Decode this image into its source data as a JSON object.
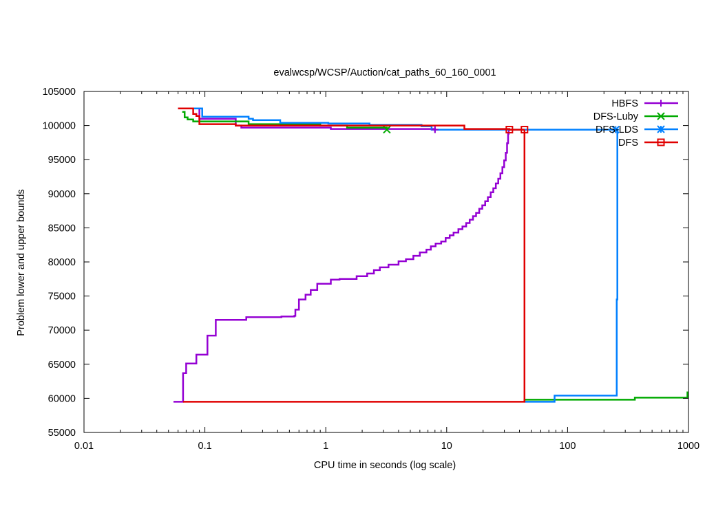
{
  "chart_data": {
    "type": "line",
    "title": "evalwcsp/WCSP/Auction/cat_paths_60_160_0001",
    "xlabel": "CPU time in seconds (log scale)",
    "ylabel": "Problem lower and upper bounds",
    "x_scale": "log",
    "xlim": [
      0.01,
      1000
    ],
    "ylim": [
      55000,
      105000
    ],
    "x_ticks": [
      0.01,
      0.1,
      1,
      10,
      100,
      1000
    ],
    "x_tick_labels": [
      "0.01",
      "0.1",
      "1",
      "10",
      "100",
      "1000"
    ],
    "y_ticks": [
      55000,
      60000,
      65000,
      70000,
      75000,
      80000,
      85000,
      90000,
      95000,
      100000,
      105000
    ],
    "y_tick_labels": [
      "55000",
      "60000",
      "65000",
      "70000",
      "75000",
      "80000",
      "85000",
      "90000",
      "95000",
      "100000",
      "105000"
    ],
    "grid": false,
    "legend_position": "top-right",
    "series": [
      {
        "name": "HBFS",
        "color": "#9400d3",
        "marker": "plus",
        "upper_bound": [
          [
            0.06,
            102500
          ],
          [
            0.075,
            102500
          ],
          [
            0.09,
            101000
          ],
          [
            0.18,
            100000
          ],
          [
            0.2,
            99700
          ],
          [
            1.1,
            99500
          ],
          [
            8.0,
            99400
          ]
        ],
        "lower_bound": [
          [
            0.055,
            59500
          ],
          [
            0.066,
            59500
          ],
          [
            0.066,
            63700
          ],
          [
            0.07,
            65100
          ],
          [
            0.085,
            66400
          ],
          [
            0.105,
            69200
          ],
          [
            0.123,
            71500
          ],
          [
            0.22,
            71900
          ],
          [
            0.43,
            72000
          ],
          [
            0.55,
            72100
          ],
          [
            0.56,
            73000
          ],
          [
            0.6,
            74500
          ],
          [
            0.68,
            75200
          ],
          [
            0.75,
            75900
          ],
          [
            0.85,
            76800
          ],
          [
            1.1,
            77400
          ],
          [
            1.3,
            77500
          ],
          [
            1.8,
            77900
          ],
          [
            2.2,
            78300
          ],
          [
            2.5,
            78800
          ],
          [
            2.8,
            79200
          ],
          [
            3.3,
            79600
          ],
          [
            4.0,
            80100
          ],
          [
            4.6,
            80400
          ],
          [
            5.3,
            80900
          ],
          [
            6.0,
            81400
          ],
          [
            6.8,
            81800
          ],
          [
            7.4,
            82300
          ],
          [
            8.1,
            82700
          ],
          [
            9.0,
            83000
          ],
          [
            9.8,
            83500
          ],
          [
            10.6,
            83900
          ],
          [
            11.4,
            84300
          ],
          [
            12.5,
            84800
          ],
          [
            13.5,
            85200
          ],
          [
            14.5,
            85700
          ],
          [
            15.5,
            86200
          ],
          [
            16.5,
            86700
          ],
          [
            17.5,
            87200
          ],
          [
            18.6,
            87800
          ],
          [
            19.7,
            88300
          ],
          [
            20.8,
            88900
          ],
          [
            21.9,
            89500
          ],
          [
            23.1,
            90200
          ],
          [
            24.3,
            90800
          ],
          [
            25.5,
            91500
          ],
          [
            26.7,
            92200
          ],
          [
            27.8,
            93000
          ],
          [
            28.9,
            93900
          ],
          [
            29.9,
            94900
          ],
          [
            30.8,
            96000
          ],
          [
            31.6,
            97400
          ],
          [
            32.2,
            98800
          ],
          [
            32.6,
            99400
          ]
        ]
      },
      {
        "name": "DFS-Luby",
        "color": "#00aa00",
        "marker": "cross",
        "upper_bound": [
          [
            0.065,
            102000
          ],
          [
            0.068,
            101200
          ],
          [
            0.072,
            100900
          ],
          [
            0.08,
            100600
          ],
          [
            0.23,
            100200
          ],
          [
            0.9,
            100000
          ],
          [
            1.5,
            99700
          ],
          [
            3.2,
            99400
          ]
        ],
        "lower_bound": [
          [
            44,
            59600
          ],
          [
            44,
            59800
          ],
          [
            360,
            59800
          ],
          [
            360,
            60100
          ],
          [
            980,
            60100
          ],
          [
            980,
            61000
          ]
        ]
      },
      {
        "name": "DFS-LDS",
        "color": "#0080ff",
        "marker": "star",
        "upper_bound": [
          [
            0.075,
            102500
          ],
          [
            0.095,
            102500
          ],
          [
            0.095,
            101300
          ],
          [
            0.21,
            101300
          ],
          [
            0.23,
            101000
          ],
          [
            0.25,
            100800
          ],
          [
            0.42,
            100400
          ],
          [
            1.05,
            100300
          ],
          [
            2.3,
            100100
          ],
          [
            6.2,
            99900
          ],
          [
            7.5,
            99400
          ],
          [
            250,
            99400
          ]
        ],
        "lower_bound": [
          [
            44,
            59500
          ],
          [
            78,
            59500
          ],
          [
            78,
            60400
          ],
          [
            255,
            60400
          ],
          [
            255,
            74500
          ],
          [
            258,
            75000
          ],
          [
            258,
            99400
          ]
        ]
      },
      {
        "name": "DFS",
        "color": "#e00000",
        "marker": "square",
        "upper_bound": [
          [
            0.06,
            102500
          ],
          [
            0.08,
            102200
          ],
          [
            0.08,
            101700
          ],
          [
            0.085,
            101400
          ],
          [
            0.09,
            100800
          ],
          [
            0.09,
            100200
          ],
          [
            0.18,
            100200
          ],
          [
            0.18,
            100000
          ],
          [
            14,
            100000
          ],
          [
            14,
            99500
          ],
          [
            33,
            99400
          ],
          [
            44,
            99400
          ]
        ],
        "lower_bound": [
          [
            0.066,
            59500
          ],
          [
            44,
            59500
          ],
          [
            44,
            99400
          ]
        ]
      }
    ]
  }
}
